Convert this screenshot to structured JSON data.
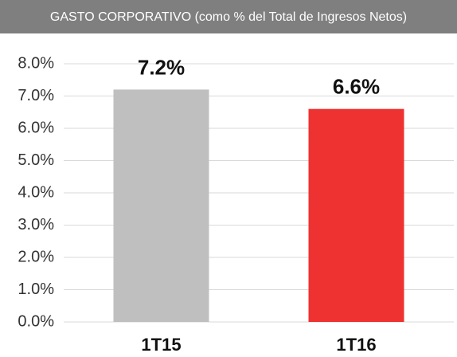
{
  "chart_data": {
    "type": "bar",
    "title": "GASTO CORPORATIVO (como % del Total de Ingresos Netos)",
    "categories": [
      "1T15",
      "1T16"
    ],
    "values": [
      7.2,
      6.6
    ],
    "value_labels": [
      "7.2%",
      "6.6%"
    ],
    "colors": [
      "#bfbfbf",
      "#ee3131"
    ],
    "ylim": [
      0,
      8
    ],
    "yticks": [
      {
        "value": 0,
        "label": "0.0%"
      },
      {
        "value": 1,
        "label": "1.0%"
      },
      {
        "value": 2,
        "label": "2.0%"
      },
      {
        "value": 3,
        "label": "3.0%"
      },
      {
        "value": 4,
        "label": "4.0%"
      },
      {
        "value": 5,
        "label": "5.0%"
      },
      {
        "value": 6,
        "label": "6.0%"
      },
      {
        "value": 7,
        "label": "7.0%"
      },
      {
        "value": 8,
        "label": "8.0%"
      }
    ],
    "grid": true
  }
}
